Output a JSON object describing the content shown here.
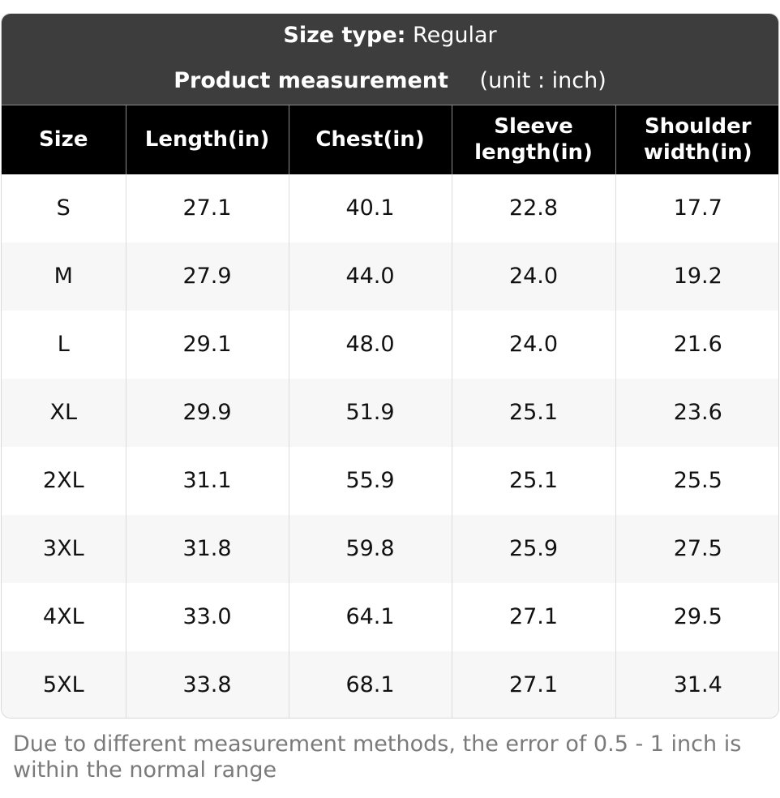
{
  "header": {
    "size_type_label": "Size type:",
    "size_type_value": "Regular",
    "measurement_label": "Product measurement",
    "unit_text": "(unit : inch)"
  },
  "table": {
    "columns": [
      "Size",
      "Length(in)",
      "Chest(in)",
      "Sleeve length(in)",
      "Shoulder width(in)"
    ],
    "column_lines": [
      [
        "Size"
      ],
      [
        "Length(in)"
      ],
      [
        "Chest(in)"
      ],
      [
        "Sleeve",
        "length(in)"
      ],
      [
        "Shoulder",
        "width(in)"
      ]
    ],
    "rows": [
      [
        "S",
        "27.1",
        "40.1",
        "22.8",
        "17.7"
      ],
      [
        "M",
        "27.9",
        "44.0",
        "24.0",
        "19.2"
      ],
      [
        "L",
        "29.1",
        "48.0",
        "24.0",
        "21.6"
      ],
      [
        "XL",
        "29.9",
        "51.9",
        "25.1",
        "23.6"
      ],
      [
        "2XL",
        "31.1",
        "55.9",
        "25.1",
        "25.5"
      ],
      [
        "3XL",
        "31.8",
        "59.8",
        "25.9",
        "27.5"
      ],
      [
        "4XL",
        "33.0",
        "64.1",
        "27.1",
        "29.5"
      ],
      [
        "5XL",
        "33.8",
        "68.1",
        "27.1",
        "31.4"
      ]
    ]
  },
  "footer": {
    "note": "Due to different measurement methods, the error of 0.5 - 1 inch is within the normal range"
  },
  "colors": {
    "title_bar_bg": "#3d3d3d",
    "header_row_bg": "#000000",
    "stripe_bg": "#f7f7f7",
    "note_text": "#7a7a7a"
  }
}
